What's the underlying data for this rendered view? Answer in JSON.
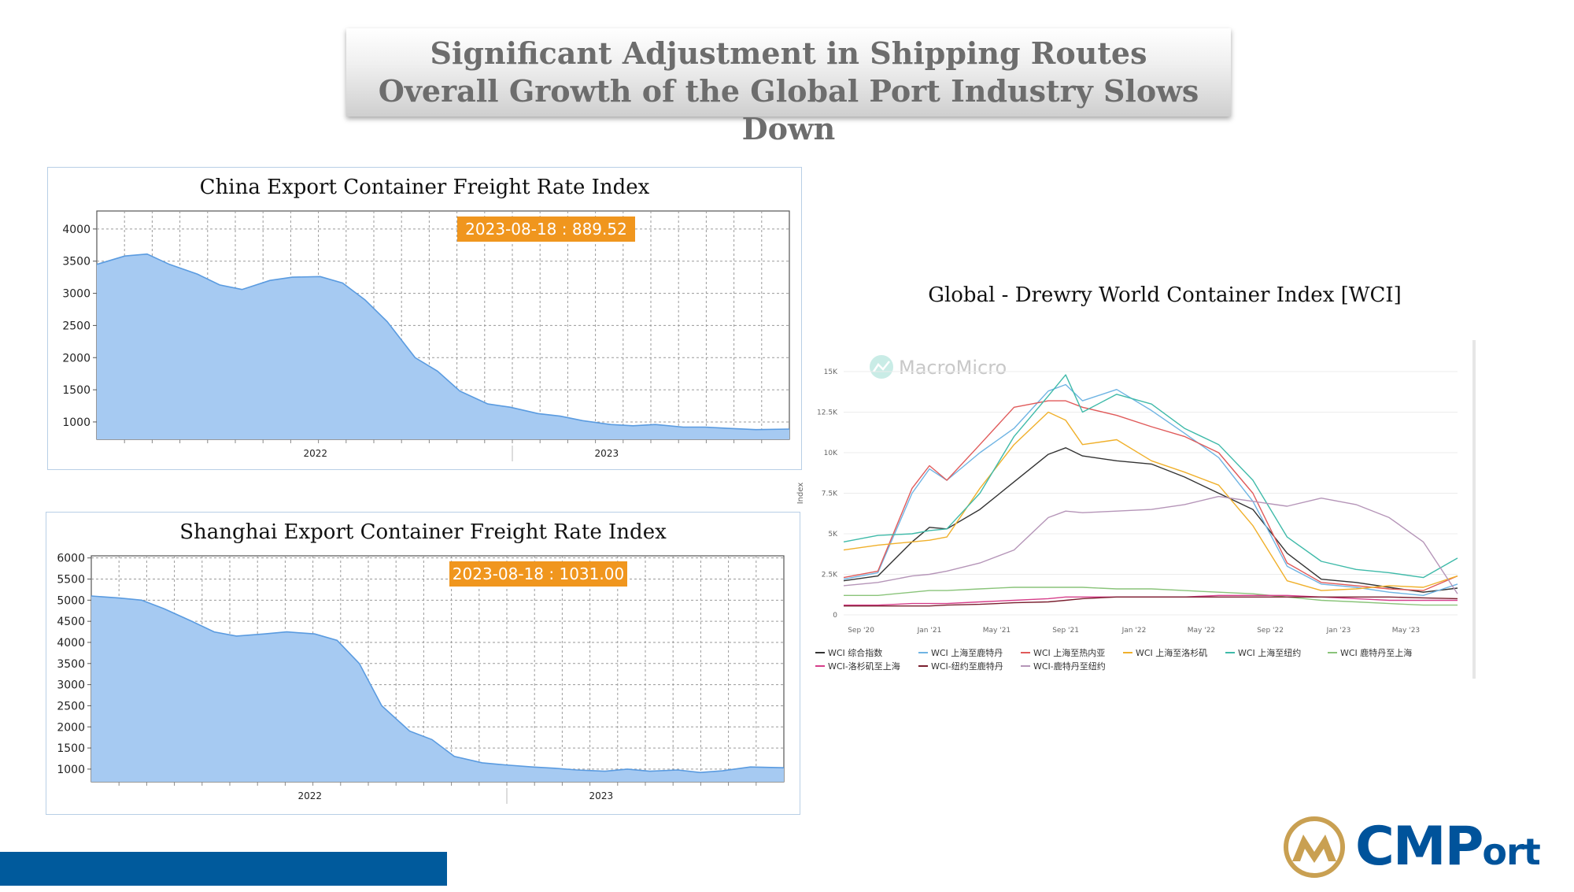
{
  "header": {
    "line1": "Significant Adjustment in Shipping Routes",
    "line2": "Overall Growth of the Global Port Industry Slows Down"
  },
  "chart_data": [
    {
      "type": "area",
      "title": "China Export Container Freight Rate Index",
      "tooltip": "2023-08-18 : 889.52",
      "x_labels": [
        "2022",
        "2023"
      ],
      "yticks": [
        1000,
        1500,
        2000,
        2500,
        3000,
        3500,
        4000
      ],
      "ylim": [
        730,
        4280
      ],
      "color": "#a6caf2",
      "x": [
        "2021-04-02",
        "2021-05-07",
        "2021-06-04",
        "2021-07-02",
        "2021-08-06",
        "2021-09-03",
        "2021-10-01",
        "2021-11-05",
        "2021-12-03",
        "2022-01-07",
        "2022-02-04",
        "2022-03-04",
        "2022-04-01",
        "2022-05-06",
        "2022-06-03",
        "2022-07-01",
        "2022-08-05",
        "2022-09-02",
        "2022-10-07",
        "2022-11-04",
        "2022-12-02",
        "2023-01-06",
        "2023-02-03",
        "2023-03-03",
        "2023-04-07",
        "2023-05-05",
        "2023-06-02",
        "2023-07-07",
        "2023-08-18"
      ],
      "values": [
        3450,
        3580,
        3610,
        3450,
        3300,
        3130,
        3060,
        3200,
        3250,
        3260,
        3160,
        2900,
        2560,
        2000,
        1790,
        1480,
        1280,
        1230,
        1130,
        1090,
        1020,
        960,
        940,
        960,
        920,
        920,
        900,
        880,
        889.52
      ]
    },
    {
      "type": "area",
      "title": "Shanghai Export Container Freight Rate Index",
      "tooltip": "2023-08-18 : 1031.00",
      "x_labels": [
        "2022",
        "2023"
      ],
      "yticks": [
        1000,
        1500,
        2000,
        2500,
        3000,
        3500,
        4000,
        4500,
        5000,
        5500,
        6000
      ],
      "ylim": [
        700,
        6050
      ],
      "color": "#a6caf2",
      "x": [
        "2021-04-02",
        "2021-05-07",
        "2021-06-04",
        "2021-07-02",
        "2021-08-06",
        "2021-09-03",
        "2021-10-01",
        "2021-11-05",
        "2021-12-03",
        "2022-01-07",
        "2022-02-04",
        "2022-03-04",
        "2022-04-01",
        "2022-05-06",
        "2022-06-03",
        "2022-07-01",
        "2022-08-05",
        "2022-09-02",
        "2022-10-07",
        "2022-11-04",
        "2022-12-02",
        "2023-01-06",
        "2023-02-03",
        "2023-03-03",
        "2023-04-07",
        "2023-05-05",
        "2023-06-02",
        "2023-07-07",
        "2023-08-18"
      ],
      "values": [
        5100,
        5050,
        5000,
        4800,
        4500,
        4250,
        4150,
        4200,
        4250,
        4200,
        4050,
        3500,
        2500,
        1900,
        1700,
        1300,
        1150,
        1100,
        1050,
        1020,
        980,
        950,
        1000,
        950,
        980,
        920,
        960,
        1050,
        1031.0
      ]
    },
    {
      "type": "line",
      "title": "Global - Drewry World Container Index [WCI]",
      "watermark": "MacroMicro",
      "ylabel": "Index",
      "yticks": [
        "0",
        "2.5K",
        "5K",
        "7.5K",
        "10K",
        "12.5K",
        "15K"
      ],
      "ylim": [
        0,
        15000
      ],
      "xticks": [
        "Sep '20",
        "Jan '21",
        "May '21",
        "Sep '21",
        "Jan '22",
        "May '22",
        "Sep '22",
        "Jan '23",
        "May '23"
      ],
      "x": [
        "2020-08",
        "2020-10",
        "2020-12",
        "2021-01",
        "2021-02",
        "2021-04",
        "2021-06",
        "2021-08",
        "2021-09",
        "2021-10",
        "2021-12",
        "2022-02",
        "2022-04",
        "2022-06",
        "2022-08",
        "2022-10",
        "2022-12",
        "2023-02",
        "2023-04",
        "2023-06",
        "2023-08"
      ],
      "series": [
        {
          "name": "WCI 综合指数",
          "color": "#333333",
          "values": [
            2100,
            2400,
            4500,
            5400,
            5300,
            6500,
            8200,
            9900,
            10300,
            9800,
            9500,
            9300,
            8500,
            7500,
            6500,
            3800,
            2200,
            2000,
            1700,
            1400,
            1650
          ]
        },
        {
          "name": "WCI 上海至鹿特丹",
          "color": "#6fb4e3",
          "values": [
            2200,
            2600,
            7500,
            9000,
            8300,
            10000,
            11500,
            13800,
            14200,
            13200,
            13900,
            12600,
            11200,
            9700,
            7000,
            3000,
            1900,
            1700,
            1400,
            1200,
            1900
          ]
        },
        {
          "name": "WCI 上海至热内亚",
          "color": "#e05a5a",
          "values": [
            2300,
            2700,
            7800,
            9200,
            8300,
            10500,
            12800,
            13200,
            13200,
            12800,
            12300,
            11600,
            11000,
            10000,
            7500,
            3200,
            2000,
            1800,
            1600,
            1500,
            2400
          ]
        },
        {
          "name": "WCI 上海至洛杉矶",
          "color": "#f0b02b",
          "values": [
            4000,
            4300,
            4500,
            4600,
            4800,
            7800,
            10500,
            12500,
            12000,
            10500,
            10800,
            9500,
            8800,
            8000,
            5500,
            2100,
            1500,
            1600,
            1800,
            1700,
            2400
          ]
        },
        {
          "name": "WCI 上海至纽约",
          "color": "#3fbaa9",
          "values": [
            4500,
            4900,
            5000,
            5200,
            5300,
            7500,
            11000,
            13500,
            14800,
            12500,
            13600,
            13000,
            11500,
            10500,
            8300,
            4800,
            3300,
            2800,
            2600,
            2300,
            3500
          ]
        },
        {
          "name": "WCI 鹿特丹至上海",
          "color": "#8ac47a",
          "values": [
            1200,
            1200,
            1400,
            1500,
            1500,
            1600,
            1700,
            1700,
            1700,
            1700,
            1600,
            1600,
            1500,
            1400,
            1300,
            1100,
            900,
            800,
            700,
            600,
            600
          ]
        },
        {
          "name": "WCI-洛杉矶至上海",
          "color": "#d63e8a",
          "values": [
            600,
            600,
            700,
            700,
            700,
            800,
            900,
            1000,
            1100,
            1100,
            1100,
            1100,
            1100,
            1200,
            1200,
            1200,
            1100,
            1000,
            900,
            900,
            900
          ]
        },
        {
          "name": "WCI-纽约至鹿特丹",
          "color": "#7a1f2f",
          "values": [
            550,
            550,
            550,
            550,
            600,
            650,
            750,
            800,
            900,
            1000,
            1100,
            1100,
            1100,
            1100,
            1100,
            1100,
            1100,
            1100,
            1100,
            1050,
            1000
          ]
        },
        {
          "name": "WCI-鹿特丹至纽约",
          "color": "#b595b8",
          "values": [
            1800,
            2000,
            2400,
            2500,
            2700,
            3200,
            4000,
            6000,
            6400,
            6300,
            6400,
            6500,
            6800,
            7300,
            7000,
            6700,
            7200,
            6800,
            6000,
            4500,
            1300
          ]
        }
      ]
    }
  ],
  "logo": {
    "text": "CMPort"
  }
}
